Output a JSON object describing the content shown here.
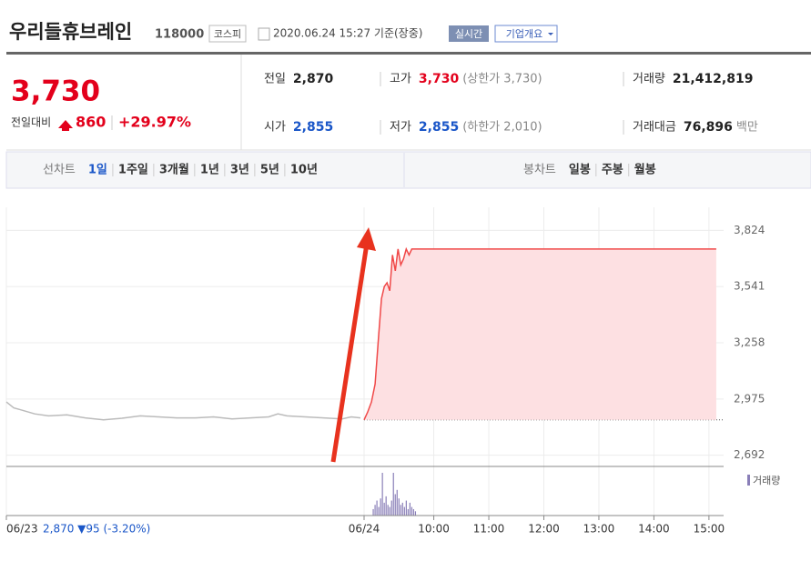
{
  "header": {
    "name": "우리들휴브레인",
    "code": "118000",
    "market": "코스피",
    "timestamp": "2020.06.24 15:27 기준(장중)",
    "realtime": "실시간",
    "company": "기업개요"
  },
  "price": {
    "current": "3,730",
    "change_label": "전일대비",
    "change": "860",
    "change_pct": "+29.97%"
  },
  "info": [
    {
      "label": "전일",
      "value": "2,870",
      "note": ""
    },
    {
      "label": "고가",
      "value": "3,730",
      "note": "(상한가 3,730)"
    },
    {
      "label": "거래량",
      "value": "21,412,819",
      "note": ""
    },
    {
      "label": "시가",
      "value": "2,855",
      "note": ""
    },
    {
      "label": "저가",
      "value": "2,855",
      "note": "(하한가 2,010)"
    },
    {
      "label": "거래대금",
      "value": "76,896",
      "note": "백만"
    }
  ],
  "tabs": {
    "line_label": "선차트",
    "line": [
      "1일",
      "1주일",
      "3개월",
      "1년",
      "3년",
      "5년",
      "10년"
    ],
    "candle_label": "봉차트",
    "candle": [
      "일봉",
      "주봉",
      "월봉"
    ]
  },
  "chart_data": {
    "type": "line",
    "xlim": [
      -406,
      376
    ],
    "ylim": [
      2640,
      3940
    ],
    "yticks": [
      {
        "value": 3824,
        "label": "3,824"
      },
      {
        "value": 3541,
        "label": "3,541"
      },
      {
        "value": 3258,
        "label": "3,258"
      },
      {
        "value": 2975,
        "label": "2,975"
      },
      {
        "value": 2692,
        "label": "2,692"
      }
    ],
    "xticks": [
      {
        "value": -406,
        "label": "06/23"
      },
      {
        "value": -16,
        "label": "06/24"
      },
      {
        "value": 60,
        "label": "10:00"
      },
      {
        "value": 120,
        "label": "11:00"
      },
      {
        "value": 180,
        "label": "12:00"
      },
      {
        "value": 240,
        "label": "13:00"
      },
      {
        "value": 300,
        "label": "14:00"
      },
      {
        "value": 360,
        "label": "15:00"
      }
    ],
    "prev_day_note": "2,870 ▼95 (-3.20%)",
    "baseline": 2870,
    "series": [
      {
        "name": "06/23",
        "color": "#bbbbbb",
        "x": [
          -406,
          -398,
          -390,
          -375,
          -360,
          -340,
          -320,
          -300,
          -280,
          -260,
          -240,
          -220,
          -200,
          -180,
          -160,
          -140,
          -120,
          -110,
          -100,
          -80,
          -60,
          -40,
          -30,
          -20
        ],
        "values": [
          2960,
          2930,
          2920,
          2900,
          2890,
          2895,
          2880,
          2870,
          2878,
          2890,
          2885,
          2880,
          2880,
          2885,
          2875,
          2880,
          2885,
          2900,
          2890,
          2885,
          2880,
          2875,
          2885,
          2880
        ]
      },
      {
        "name": "06/24",
        "color": "#f04848",
        "x": [
          -16,
          -12,
          -8,
          -4,
          0,
          3,
          6,
          9,
          12,
          15,
          18,
          21,
          24,
          27,
          30,
          33,
          36,
          40,
          360,
          368
        ],
        "values": [
          2870,
          2910,
          2960,
          3050,
          3300,
          3480,
          3541,
          3560,
          3520,
          3700,
          3620,
          3730,
          3650,
          3680,
          3730,
          3700,
          3730,
          3730,
          3730,
          3730
        ]
      }
    ],
    "volume_label": "거래량",
    "volume": {
      "color": "#8a7fb8",
      "x": [
        -6,
        -4,
        -2,
        0,
        2,
        4,
        6,
        8,
        10,
        12,
        14,
        16,
        18,
        20,
        22,
        24,
        26,
        28,
        30,
        32,
        34,
        36,
        38,
        40
      ],
      "values": [
        15,
        25,
        35,
        20,
        40,
        100,
        30,
        45,
        25,
        20,
        35,
        100,
        50,
        60,
        40,
        25,
        30,
        20,
        35,
        15,
        30,
        20,
        15,
        10
      ]
    }
  }
}
